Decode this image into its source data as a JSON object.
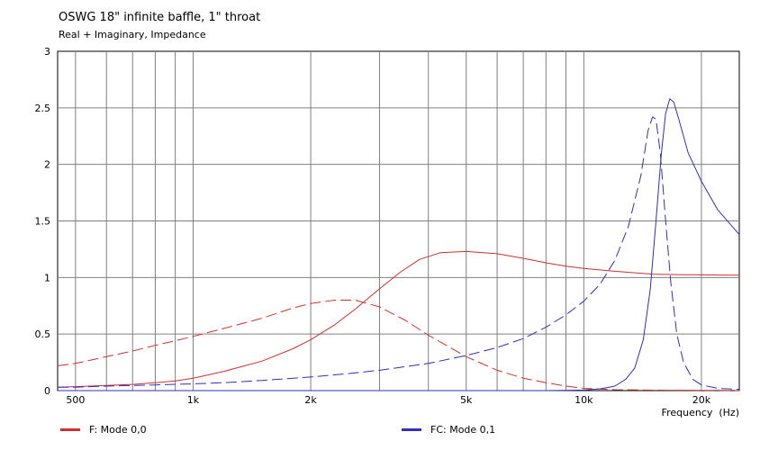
{
  "header": {
    "title": "OSWG 18\" infinite baffle, 1\" throat",
    "subtitle": "Real + Imaginary, Impedance"
  },
  "chart_data": {
    "type": "line",
    "title": "OSWG 18\" infinite baffle, 1\" throat",
    "subtitle": "Real + Imaginary, Impedance",
    "xlabel": "Frequency  (Hz)",
    "ylabel": "",
    "xscale": "log",
    "xlim": [
      450,
      25000
    ],
    "ylim": [
      0,
      3
    ],
    "grid": true,
    "x_ticks": [
      {
        "value": 500,
        "label": "500"
      },
      {
        "value": 1000,
        "label": "1k"
      },
      {
        "value": 2000,
        "label": "2k"
      },
      {
        "value": 5000,
        "label": "5k"
      },
      {
        "value": 10000,
        "label": "10k"
      },
      {
        "value": 20000,
        "label": "20k"
      }
    ],
    "y_ticks": [
      {
        "value": 0,
        "label": "0"
      },
      {
        "value": 0.5,
        "label": "0.5"
      },
      {
        "value": 1,
        "label": "1"
      },
      {
        "value": 1.5,
        "label": "1.5"
      },
      {
        "value": 2,
        "label": "2"
      },
      {
        "value": 2.5,
        "label": "2.5"
      },
      {
        "value": 3,
        "label": "3"
      }
    ],
    "minor_x_gridlines": [
      600,
      700,
      800,
      900,
      3000,
      4000,
      6000,
      7000,
      8000,
      9000
    ],
    "legend_position": "bottom",
    "series": [
      {
        "name": "F: Mode 0,0",
        "color": "#d03030",
        "curves": [
          {
            "part": "real",
            "dash": "solid",
            "points": [
              [
                450,
                0.03
              ],
              [
                500,
                0.035
              ],
              [
                600,
                0.045
              ],
              [
                700,
                0.055
              ],
              [
                800,
                0.07
              ],
              [
                900,
                0.085
              ],
              [
                1000,
                0.11
              ],
              [
                1200,
                0.17
              ],
              [
                1500,
                0.26
              ],
              [
                1800,
                0.37
              ],
              [
                2000,
                0.45
              ],
              [
                2300,
                0.58
              ],
              [
                2600,
                0.72
              ],
              [
                3000,
                0.9
              ],
              [
                3400,
                1.05
              ],
              [
                3800,
                1.16
              ],
              [
                4300,
                1.22
              ],
              [
                5000,
                1.23
              ],
              [
                6000,
                1.21
              ],
              [
                7000,
                1.17
              ],
              [
                8000,
                1.13
              ],
              [
                9000,
                1.1
              ],
              [
                10000,
                1.08
              ],
              [
                12000,
                1.055
              ],
              [
                15000,
                1.03
              ],
              [
                18000,
                1.025
              ],
              [
                20000,
                1.023
              ],
              [
                22000,
                1.022
              ],
              [
                25000,
                1.02
              ]
            ]
          },
          {
            "part": "imaginary",
            "dash": "dashed",
            "points": [
              [
                450,
                0.22
              ],
              [
                500,
                0.24
              ],
              [
                600,
                0.3
              ],
              [
                700,
                0.35
              ],
              [
                800,
                0.4
              ],
              [
                900,
                0.44
              ],
              [
                1000,
                0.48
              ],
              [
                1200,
                0.55
              ],
              [
                1500,
                0.64
              ],
              [
                1800,
                0.73
              ],
              [
                2000,
                0.77
              ],
              [
                2300,
                0.8
              ],
              [
                2600,
                0.8
              ],
              [
                3000,
                0.74
              ],
              [
                3500,
                0.62
              ],
              [
                4000,
                0.49
              ],
              [
                4500,
                0.39
              ],
              [
                5000,
                0.3
              ],
              [
                6000,
                0.18
              ],
              [
                7000,
                0.11
              ],
              [
                8000,
                0.07
              ],
              [
                9000,
                0.04
              ],
              [
                10000,
                0.02
              ],
              [
                12000,
                0.008
              ],
              [
                15000,
                0.004
              ],
              [
                20000,
                0.002
              ],
              [
                25000,
                0.001
              ]
            ]
          }
        ]
      },
      {
        "name": "FC: Mode 0,1",
        "color": "#3030c0",
        "curves": [
          {
            "part": "real",
            "dash": "solid",
            "points": [
              [
                450,
                0.0
              ],
              [
                8000,
                0.0
              ],
              [
                10000,
                0.005
              ],
              [
                11000,
                0.015
              ],
              [
                12000,
                0.04
              ],
              [
                12800,
                0.1
              ],
              [
                13500,
                0.2
              ],
              [
                14200,
                0.45
              ],
              [
                14800,
                0.9
              ],
              [
                15300,
                1.5
              ],
              [
                15800,
                2.1
              ],
              [
                16200,
                2.45
              ],
              [
                16600,
                2.58
              ],
              [
                17000,
                2.55
              ],
              [
                17500,
                2.4
              ],
              [
                18500,
                2.1
              ],
              [
                20000,
                1.85
              ],
              [
                22000,
                1.6
              ],
              [
                24000,
                1.45
              ],
              [
                25000,
                1.38
              ]
            ]
          },
          {
            "part": "imaginary",
            "dash": "dashed",
            "points": [
              [
                450,
                0.03
              ],
              [
                500,
                0.03
              ],
              [
                600,
                0.04
              ],
              [
                700,
                0.045
              ],
              [
                800,
                0.05
              ],
              [
                1000,
                0.06
              ],
              [
                1200,
                0.07
              ],
              [
                1500,
                0.09
              ],
              [
                2000,
                0.12
              ],
              [
                2500,
                0.15
              ],
              [
                3000,
                0.18
              ],
              [
                4000,
                0.24
              ],
              [
                5000,
                0.31
              ],
              [
                6000,
                0.38
              ],
              [
                7000,
                0.46
              ],
              [
                8000,
                0.56
              ],
              [
                9000,
                0.67
              ],
              [
                10000,
                0.79
              ],
              [
                11000,
                0.94
              ],
              [
                12000,
                1.15
              ],
              [
                13000,
                1.45
              ],
              [
                14000,
                1.9
              ],
              [
                14600,
                2.3
              ],
              [
                15000,
                2.42
              ],
              [
                15300,
                2.4
              ],
              [
                15700,
                2.1
              ],
              [
                16200,
                1.5
              ],
              [
                16700,
                0.95
              ],
              [
                17300,
                0.5
              ],
              [
                18000,
                0.25
              ],
              [
                19000,
                0.1
              ],
              [
                20000,
                0.05
              ],
              [
                22000,
                0.02
              ],
              [
                25000,
                0.01
              ]
            ]
          }
        ]
      }
    ]
  }
}
